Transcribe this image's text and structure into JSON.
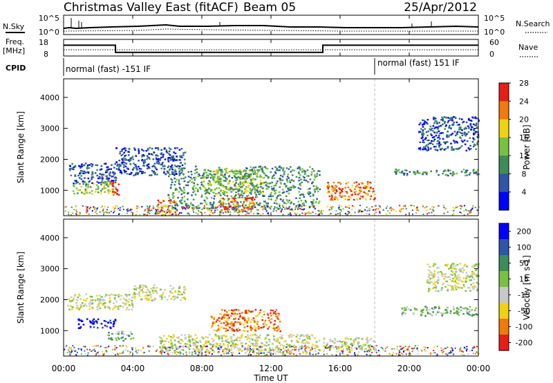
{
  "header": {
    "title": "Christmas Valley East (fitACF)",
    "beam": "Beam 05",
    "date": "25/Apr/2012"
  },
  "nsky_panel": {
    "left_label": "N.Sky",
    "right_label": "N.Search",
    "y_ticks_left": [
      "10^5",
      "10^0"
    ],
    "y_ticks_right": [
      "10^5",
      "10^0"
    ]
  },
  "freq_panel": {
    "left_label_1": "Freq.",
    "left_label_2": "[MHz]",
    "right_label": "Nave",
    "y_ticks_left": [
      "18",
      "8"
    ],
    "y_ticks_right": [
      "60",
      "0"
    ],
    "freq_steps": [
      {
        "x": 0,
        "v": 14.5
      },
      {
        "x": 3,
        "v": 14.5
      },
      {
        "x": 3,
        "v": 10.2
      },
      {
        "x": 15,
        "v": 10.2
      },
      {
        "x": 15,
        "v": 14.5
      },
      {
        "x": 24,
        "v": 14.5
      }
    ]
  },
  "cpid": {
    "label": "CPID",
    "mode1": "normal (fast) -151 IF",
    "mode2": "normal (fast) 151 IF",
    "switch_hour": 18
  },
  "chart_data": [
    {
      "type": "heatmap",
      "name": "power",
      "ylabel": "Slant Range [km]",
      "ylim": [
        180,
        4600
      ],
      "yticks": [
        1000,
        2000,
        3000,
        4000
      ],
      "colorbar_label": "Power [dB]",
      "colorbar_ticks": [
        "4",
        "8",
        "12",
        "16",
        "20",
        "24",
        "28"
      ],
      "colors": [
        "#0000ff",
        "#2f55a6",
        "#3c8c5a",
        "#77c043",
        "#f0d213",
        "#f07a0c",
        "#e61e14"
      ],
      "regions": [
        {
          "x": [
            0.3,
            3.0
          ],
          "y": [
            1200,
            1900
          ],
          "level": 1
        },
        {
          "x": [
            0.5,
            2.8
          ],
          "y": [
            900,
            1300
          ],
          "level": 3
        },
        {
          "x": [
            2.7,
            3.2
          ],
          "y": [
            800,
            1300
          ],
          "level": 6
        },
        {
          "x": [
            3.0,
            7.0
          ],
          "y": [
            1500,
            2400
          ],
          "level": 1
        },
        {
          "x": [
            5.3,
            6.5
          ],
          "y": [
            200,
            700
          ],
          "level": 5
        },
        {
          "x": [
            6.0,
            14.8
          ],
          "y": [
            400,
            1800
          ],
          "level": 2
        },
        {
          "x": [
            8.0,
            11.5
          ],
          "y": [
            900,
            1700
          ],
          "level": 3
        },
        {
          "x": [
            9.0,
            11.0
          ],
          "y": [
            300,
            800
          ],
          "level": 5
        },
        {
          "x": [
            15.2,
            18.0
          ],
          "y": [
            700,
            1300
          ],
          "level": 5
        },
        {
          "x": [
            19.0,
            24.0
          ],
          "y": [
            1500,
            1700
          ],
          "level": 2
        },
        {
          "x": [
            20.5,
            24.0
          ],
          "y": [
            2300,
            3400
          ],
          "level": 1
        }
      ]
    },
    {
      "type": "heatmap",
      "name": "velocity",
      "ylabel": "Slant Range [km]",
      "ylim": [
        180,
        4600
      ],
      "yticks": [
        1000,
        2000,
        3000,
        4000
      ],
      "colorbar_label": "Velocity [m s-1]",
      "colorbar_ticks": [
        "200",
        "100",
        "50",
        "15",
        "-15",
        "-50",
        "-100",
        "-200"
      ],
      "colors": [
        "#0000ff",
        "#2f55a6",
        "#3c8c5a",
        "#77c043",
        "#c8c8c8",
        "#f0d213",
        "#f07a0c",
        "#e61e14"
      ],
      "regions": [
        {
          "x": [
            0.2,
            4.0
          ],
          "y": [
            1700,
            2200
          ],
          "level": 4
        },
        {
          "x": [
            0.8,
            3.0
          ],
          "y": [
            1100,
            1400
          ],
          "level": 0
        },
        {
          "x": [
            2.5,
            4.0
          ],
          "y": [
            700,
            1000
          ],
          "level": 3
        },
        {
          "x": [
            4.0,
            7.0
          ],
          "y": [
            2000,
            2500
          ],
          "level": 4
        },
        {
          "x": [
            5.5,
            14.8
          ],
          "y": [
            300,
            900
          ],
          "level": 4
        },
        {
          "x": [
            8.5,
            12.5
          ],
          "y": [
            1000,
            1700
          ],
          "level": 6
        },
        {
          "x": [
            15.0,
            18.0
          ],
          "y": [
            400,
            800
          ],
          "level": 4
        },
        {
          "x": [
            19.5,
            24.0
          ],
          "y": [
            1500,
            1800
          ],
          "level": 3
        },
        {
          "x": [
            21.0,
            24.0
          ],
          "y": [
            2300,
            3200
          ],
          "level": 4
        }
      ]
    }
  ],
  "x_axis": {
    "label": "Time UT",
    "ticks": [
      "00:00",
      "04:00",
      "08:00",
      "12:00",
      "16:00",
      "20:00",
      "00:00"
    ]
  }
}
